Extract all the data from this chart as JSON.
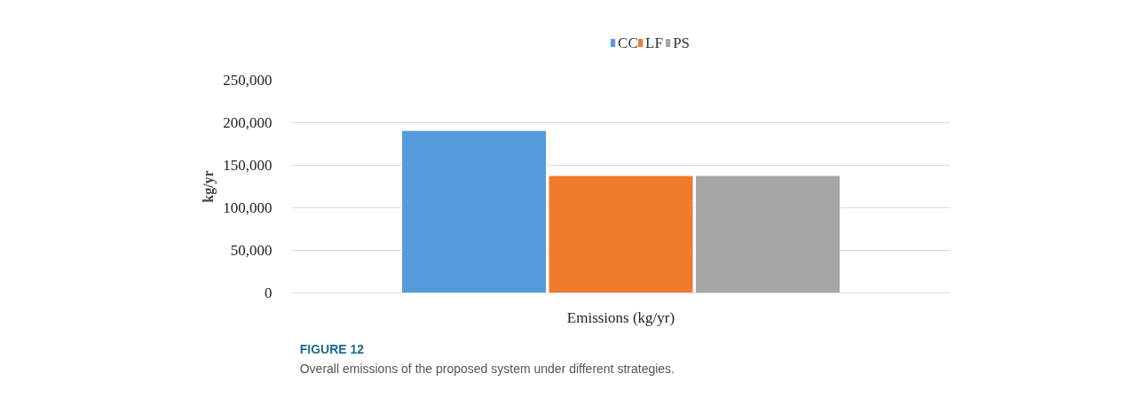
{
  "chart_data": {
    "type": "bar",
    "ylabel": "kg/yr",
    "categories": [
      "Emissions (kg/yr)"
    ],
    "series": [
      {
        "name": "CC",
        "color": "#559bdb",
        "values": [
          191000
        ]
      },
      {
        "name": "LF",
        "color": "#f07b2a",
        "values": [
          138000
        ]
      },
      {
        "name": "PS",
        "color": "#a6a6a6",
        "values": [
          138000
        ]
      }
    ],
    "ylim": [
      0,
      250000
    ],
    "yticks": [
      {
        "value": 0,
        "label": "0"
      },
      {
        "value": 50000,
        "label": "50,000"
      },
      {
        "value": 100000,
        "label": "100,000"
      },
      {
        "value": 150000,
        "label": "150,000"
      },
      {
        "value": 200000,
        "label": "200,000"
      },
      {
        "value": 250000,
        "label": "250,000"
      }
    ],
    "grid": "y",
    "legend": "top",
    "annotations": [
      "FIGURE 12",
      "Overall emissions of the proposed system under different strategies."
    ]
  }
}
